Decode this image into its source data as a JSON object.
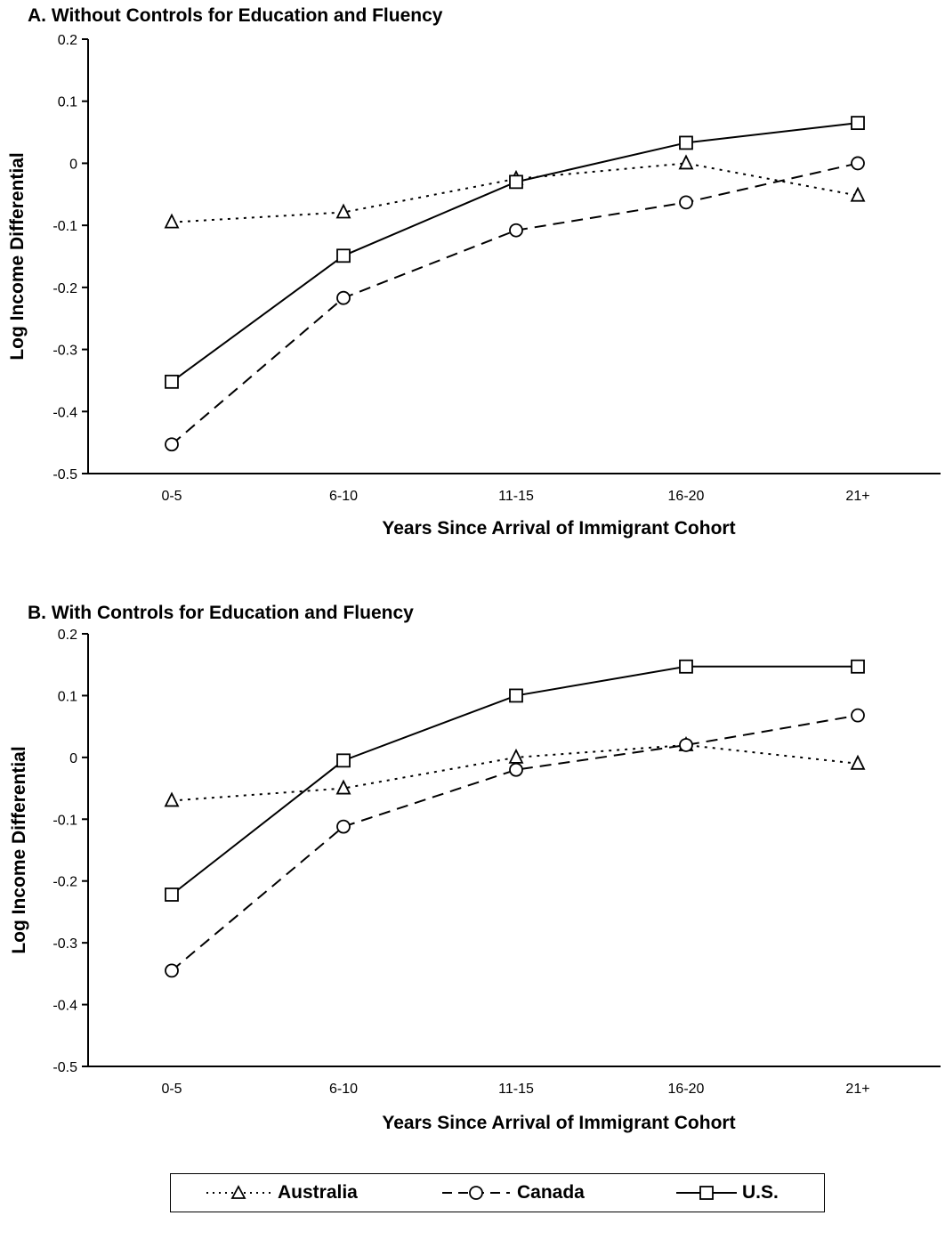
{
  "chart_data": [
    {
      "type": "line",
      "title": "A.  Without Controls for Education and Fluency",
      "xlabel": "Years Since Arrival of Immigrant Cohort",
      "ylabel": "Log Income Differential",
      "categories": [
        "0-5",
        "6-10",
        "11-15",
        "16-20",
        "21+"
      ],
      "yticks": [
        "0.2",
        "0.1",
        "0",
        "-0.1",
        "-0.2",
        "-0.3",
        "-0.4",
        "-0.5"
      ],
      "ylim": [
        -0.5,
        0.2
      ],
      "grid": false,
      "series": [
        {
          "name": "Australia",
          "marker": "triangle",
          "dash": "dotted",
          "values": [
            -0.095,
            -0.079,
            -0.025,
            0.0,
            -0.052
          ]
        },
        {
          "name": "Canada",
          "marker": "circle",
          "dash": "dashed",
          "values": [
            -0.453,
            -0.217,
            -0.108,
            -0.063,
            0.0
          ]
        },
        {
          "name": "U.S.",
          "marker": "square",
          "dash": "solid",
          "values": [
            -0.352,
            -0.149,
            -0.03,
            0.033,
            0.065
          ]
        }
      ]
    },
    {
      "type": "line",
      "title": "B.  With Controls for Education and Fluency",
      "xlabel": "Years Since Arrival of Immigrant Cohort",
      "ylabel": "Log Income Differential",
      "categories": [
        "0-5",
        "6-10",
        "11-15",
        "16-20",
        "21+"
      ],
      "yticks": [
        "0.2",
        "0.1",
        "0",
        "-0.1",
        "-0.2",
        "-0.3",
        "-0.4",
        "-0.5"
      ],
      "ylim": [
        -0.5,
        0.2
      ],
      "grid": false,
      "series": [
        {
          "name": "Australia",
          "marker": "triangle",
          "dash": "dotted",
          "values": [
            -0.07,
            -0.05,
            0.0,
            0.02,
            -0.01
          ]
        },
        {
          "name": "Canada",
          "marker": "circle",
          "dash": "dashed",
          "values": [
            -0.345,
            -0.112,
            -0.02,
            0.02,
            0.068
          ]
        },
        {
          "name": "U.S.",
          "marker": "square",
          "dash": "solid",
          "values": [
            -0.222,
            -0.005,
            0.1,
            0.147,
            0.147
          ]
        }
      ]
    }
  ],
  "legend": {
    "placement": "bottom",
    "items": [
      {
        "label": "Australia",
        "marker": "triangle",
        "dash": "dotted"
      },
      {
        "label": "Canada",
        "marker": "circle",
        "dash": "dashed"
      },
      {
        "label": "U.S.",
        "marker": "square",
        "dash": "solid"
      }
    ]
  },
  "colors": {
    "line": "#000000",
    "background": "#ffffff"
  }
}
